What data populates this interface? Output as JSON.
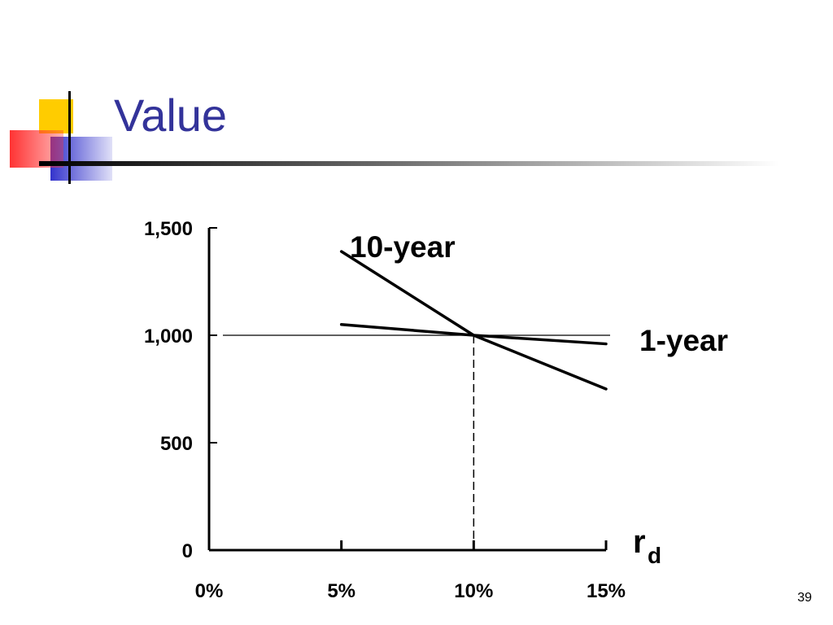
{
  "slide": {
    "title": "Value",
    "page_number": "39"
  },
  "colors": {
    "title": "#33339a",
    "deco_yellow": "#ffcc00",
    "deco_blue": "#3333cc",
    "deco_red": "#ff3333"
  },
  "chart_data": {
    "type": "line",
    "title": "",
    "xlabel": "r",
    "xlabel_subscript": "d",
    "ylabel": "",
    "xlim": [
      0,
      15
    ],
    "ylim": [
      0,
      1500
    ],
    "x_ticks": [
      {
        "value": 0,
        "label": "0%"
      },
      {
        "value": 5,
        "label": "5%"
      },
      {
        "value": 10,
        "label": "10%"
      },
      {
        "value": 15,
        "label": "15%"
      }
    ],
    "y_ticks": [
      {
        "value": 0,
        "label": "0"
      },
      {
        "value": 500,
        "label": "500"
      },
      {
        "value": 1000,
        "label": "1,000"
      },
      {
        "value": 1500,
        "label": "1,500"
      }
    ],
    "series": [
      {
        "name": "10-year",
        "x": [
          5,
          10,
          15
        ],
        "y": [
          1390,
          1000,
          750
        ]
      },
      {
        "name": "1-year",
        "x": [
          5,
          10,
          15
        ],
        "y": [
          1050,
          1000,
          960
        ]
      }
    ],
    "reference_lines": {
      "horizontal_y": 1000,
      "vertical_dashed_x": 10
    },
    "grid": false
  }
}
